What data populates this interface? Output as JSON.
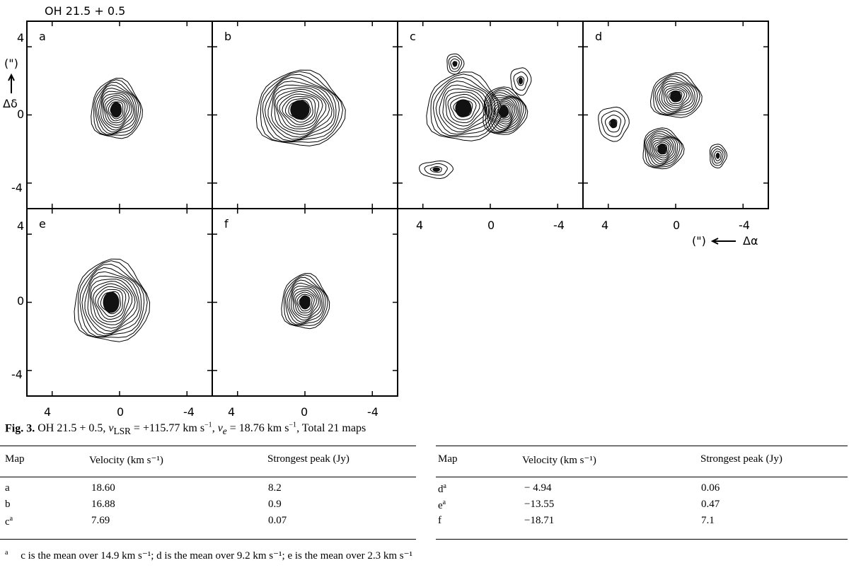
{
  "figure": {
    "source_label": "OH 21.5 + 0.5",
    "axes": {
      "y_unit": "(\")",
      "y_symbol": "Δδ",
      "y_ticks": [
        "4",
        "0",
        "-4"
      ],
      "x_ticks": [
        "4",
        "0",
        "-4"
      ],
      "x_unit": "(\")",
      "x_symbol": "Δα"
    },
    "panels": [
      {
        "letter": "a"
      },
      {
        "letter": "b"
      },
      {
        "letter": "c"
      },
      {
        "letter": "d"
      },
      {
        "letter": "e"
      },
      {
        "letter": "f"
      }
    ]
  },
  "caption": {
    "label": "Fig. 3.",
    "text_html": " OH 21.5 + 0.5, <i>v</i><sub>LSR</sub> = +115.77 km s<sup>−1</sup>, <i>v<sub>e</sub></i> = 18.76 km s<sup>−1</sup>, Total 21 maps"
  },
  "table": {
    "headers": [
      "Map",
      "Velocity (km s⁻¹)",
      "Strongest peak (Jy)"
    ],
    "left_rows": [
      {
        "map": "a",
        "sup": "",
        "velocity": "18.60",
        "peak": "8.2"
      },
      {
        "map": "b",
        "sup": "",
        "velocity": "16.88",
        "peak": "0.9"
      },
      {
        "map": "c",
        "sup": "a",
        "velocity": "7.69",
        "peak": "0.07"
      }
    ],
    "right_rows": [
      {
        "map": "d",
        "sup": "a",
        "velocity": "−  4.94",
        "peak": "0.06"
      },
      {
        "map": "e",
        "sup": "a",
        "velocity": "−13.55",
        "peak": "0.47"
      },
      {
        "map": "f",
        "sup": "",
        "velocity": "−18.71",
        "peak": "7.1"
      }
    ]
  },
  "footnote": {
    "marker": "a",
    "text": "c is the mean over 14.9 km s⁻¹; d is the mean over 9.2 km s⁻¹; e is the mean over 2.3 km s⁻¹"
  },
  "contour_maps": {
    "a": {
      "sources": [
        {
          "ra": 0.2,
          "dec": 0.3,
          "nested_levels": 14,
          "size": [
            1.5,
            1.75
          ]
        }
      ]
    },
    "b": {
      "sources": [
        {
          "ra": 0.3,
          "dec": 0.3,
          "nested_levels": 16,
          "size": [
            2.6,
            2.2
          ]
        }
      ]
    },
    "c": {
      "sources": [
        {
          "ra": 1.6,
          "dec": 0.4,
          "nested_levels": 12,
          "size": [
            2.2,
            2.0
          ]
        },
        {
          "ra": -0.8,
          "dec": 0.2,
          "nested_levels": 14,
          "size": [
            1.3,
            1.4
          ]
        },
        {
          "ra": 2.1,
          "dec": 3.0,
          "nested_levels": 4,
          "size": [
            0.5,
            0.6
          ]
        },
        {
          "ra": -1.8,
          "dec": 2.0,
          "nested_levels": 3,
          "size": [
            0.6,
            0.8
          ]
        },
        {
          "ra": 3.2,
          "dec": -3.2,
          "nested_levels": 3,
          "size": [
            1.0,
            0.5
          ]
        }
      ]
    },
    "d": {
      "sources": [
        {
          "ra": 0.0,
          "dec": 1.1,
          "nested_levels": 12,
          "size": [
            1.5,
            1.3
          ]
        },
        {
          "ra": 0.8,
          "dec": -2.0,
          "nested_levels": 12,
          "size": [
            1.2,
            1.2
          ]
        },
        {
          "ra": -2.5,
          "dec": -2.4,
          "nested_levels": 5,
          "size": [
            0.5,
            0.7
          ]
        },
        {
          "ra": 3.7,
          "dec": -0.5,
          "nested_levels": 4,
          "size": [
            0.9,
            1.0
          ]
        }
      ]
    },
    "e": {
      "sources": [
        {
          "ra": 0.5,
          "dec": 0.0,
          "nested_levels": 15,
          "size": [
            2.2,
            2.4
          ]
        }
      ]
    },
    "f": {
      "sources": [
        {
          "ra": 0.0,
          "dec": 0.0,
          "nested_levels": 13,
          "size": [
            1.4,
            1.6
          ]
        }
      ]
    }
  }
}
